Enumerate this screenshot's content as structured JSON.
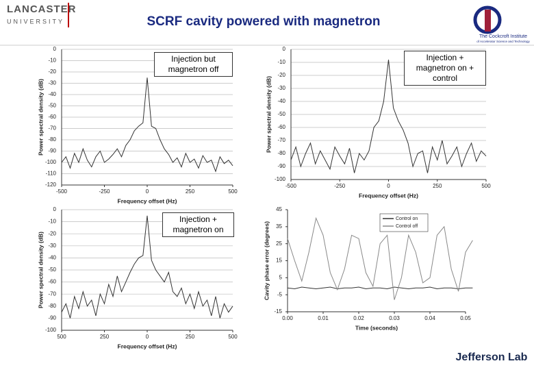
{
  "slide": {
    "title": "SCRF cavity powered with magnetron",
    "logo_left_1": "LANCASTER",
    "logo_left_2": "UNIVERSITY",
    "logo_right_1": "The Cockcroft Institute",
    "logo_right_2": "of Accelerator Science and Technology",
    "logo_bottom": "Jefferson Lab"
  },
  "chart_data": [
    {
      "type": "line",
      "annotation": "Injection but magnetron off",
      "xlabel": "Frequency offset (Hz)",
      "ylabel": "Power spectral density (dB)",
      "color": "#333333",
      "grid": true,
      "x": [
        -500,
        -475,
        -450,
        -425,
        -400,
        -375,
        -350,
        -325,
        -300,
        -275,
        -250,
        -225,
        -200,
        -175,
        -150,
        -125,
        -100,
        -75,
        -50,
        -25,
        0,
        25,
        50,
        75,
        100,
        125,
        150,
        175,
        200,
        225,
        250,
        275,
        300,
        325,
        350,
        375,
        400,
        425,
        450,
        475,
        500
      ],
      "values": [
        -100,
        -95,
        -105,
        -92,
        -100,
        -88,
        -98,
        -104,
        -95,
        -90,
        -100,
        -97,
        -93,
        -88,
        -95,
        -85,
        -80,
        -72,
        -68,
        -65,
        -25,
        -68,
        -70,
        -80,
        -88,
        -93,
        -100,
        -96,
        -104,
        -92,
        -100,
        -97,
        -105,
        -94,
        -100,
        -98,
        -108,
        -95,
        -101,
        -98,
        -103
      ],
      "xlim": [
        -500,
        500
      ],
      "xticks": [
        -500,
        -250,
        0,
        250,
        500
      ],
      "ylim": [
        -120,
        0
      ],
      "yticks": [
        0,
        -10,
        -20,
        -30,
        -40,
        -50,
        -60,
        -70,
        -80,
        -90,
        -100,
        -110,
        -120
      ]
    },
    {
      "type": "line",
      "annotation": "Injection + magnetron on + control",
      "xlabel": "Frequency offset (Hz)",
      "ylabel": "Power spectral density (dB)",
      "color": "#333333",
      "grid": true,
      "x": [
        -500,
        -475,
        -450,
        -425,
        -400,
        -375,
        -350,
        -325,
        -300,
        -275,
        -250,
        -225,
        -200,
        -175,
        -150,
        -125,
        -100,
        -75,
        -50,
        -25,
        0,
        25,
        50,
        75,
        100,
        125,
        150,
        175,
        200,
        225,
        250,
        275,
        300,
        325,
        350,
        375,
        400,
        425,
        450,
        475,
        500
      ],
      "values": [
        -85,
        -75,
        -90,
        -80,
        -72,
        -88,
        -78,
        -85,
        -92,
        -75,
        -82,
        -88,
        -76,
        -95,
        -80,
        -85,
        -78,
        -60,
        -55,
        -40,
        -8,
        -45,
        -55,
        -62,
        -72,
        -90,
        -80,
        -78,
        -95,
        -75,
        -85,
        -70,
        -88,
        -82,
        -75,
        -90,
        -80,
        -72,
        -86,
        -78,
        -82
      ],
      "xlim": [
        -500,
        500
      ],
      "xticks": [
        -500,
        -250,
        0,
        250,
        500
      ],
      "ylim": [
        -100,
        0
      ],
      "yticks": [
        0,
        -10,
        -20,
        -30,
        -40,
        -50,
        -60,
        -70,
        -80,
        -90,
        -100
      ]
    },
    {
      "type": "line",
      "annotation": "Injection + magnetron on",
      "xlabel": "Frequency offset (Hz)",
      "ylabel": "Power spectral density (dB)",
      "color": "#333333",
      "grid": true,
      "x": [
        -500,
        -475,
        -450,
        -425,
        -400,
        -375,
        -350,
        -325,
        -300,
        -275,
        -250,
        -225,
        -200,
        -175,
        -150,
        -125,
        -100,
        -75,
        -50,
        -25,
        0,
        25,
        50,
        75,
        100,
        125,
        150,
        175,
        200,
        225,
        250,
        275,
        300,
        325,
        350,
        375,
        400,
        425,
        450,
        475,
        500
      ],
      "values": [
        -85,
        -78,
        -90,
        -72,
        -82,
        -68,
        -80,
        -75,
        -88,
        -70,
        -78,
        -62,
        -72,
        -55,
        -68,
        -60,
        -52,
        -45,
        -40,
        -38,
        -5,
        -42,
        -50,
        -55,
        -60,
        -52,
        -68,
        -72,
        -65,
        -78,
        -70,
        -82,
        -68,
        -80,
        -75,
        -88,
        -72,
        -90,
        -78,
        -85,
        -80
      ],
      "xlim": [
        -500,
        500
      ],
      "xticks": [
        {
          "value": -500,
          "label": "500"
        },
        {
          "value": -250,
          "label": "250"
        },
        0,
        250,
        500
      ],
      "ylim": [
        -100,
        0
      ],
      "yticks": [
        0,
        -10,
        -20,
        -30,
        -40,
        -50,
        -60,
        -70,
        -80,
        -90,
        -100
      ]
    },
    {
      "type": "line",
      "xlabel": "Time (seconds)",
      "ylabel": "Cavity phase error (degrees)",
      "grid": false,
      "legend": "upper right",
      "x": [
        0,
        0.002,
        0.004,
        0.006,
        0.008,
        0.01,
        0.012,
        0.014,
        0.016,
        0.018,
        0.02,
        0.022,
        0.024,
        0.026,
        0.028,
        0.03,
        0.032,
        0.034,
        0.036,
        0.038,
        0.04,
        0.042,
        0.044,
        0.046,
        0.048,
        0.05,
        0.052
      ],
      "series": [
        {
          "name": "Control on",
          "color": "#333333",
          "values": [
            -1,
            -1.5,
            -0.5,
            -1,
            -1.5,
            -1,
            -0.5,
            -1.5,
            -1,
            -1,
            -0.5,
            -1.5,
            -1,
            -1,
            -1.5,
            -0.5,
            -1,
            -1.5,
            -1,
            -1,
            -0.5,
            -1.5,
            -1,
            -1,
            -1.5,
            -1,
            -1
          ]
        },
        {
          "name": "Control off",
          "color": "#888888",
          "values": [
            28,
            15,
            3,
            20,
            40,
            30,
            8,
            -2,
            10,
            30,
            28,
            8,
            0,
            25,
            30,
            -8,
            5,
            30,
            20,
            2,
            5,
            30,
            35,
            10,
            -3,
            20,
            27
          ]
        }
      ],
      "xlim": [
        0,
        0.05
      ],
      "xticks": [
        {
          "value": 0,
          "label": "0.00"
        },
        0.01,
        0.02,
        0.03,
        0.04,
        0.05
      ],
      "ylim": [
        -15,
        45
      ],
      "yticks": [
        45,
        35,
        25,
        15,
        5,
        -5,
        -15
      ]
    }
  ]
}
